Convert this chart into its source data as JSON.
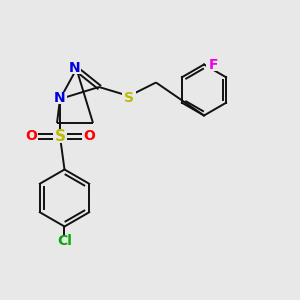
{
  "background_color": "#e8e8e8",
  "figsize": [
    3.0,
    3.0
  ],
  "dpi": 100,
  "bond_lw": 1.4,
  "black": "#111111",
  "colors": {
    "N": "#0000dd",
    "S": "#bbbb00",
    "O": "#ff0000",
    "F": "#ee00ee",
    "Cl": "#00aa00"
  },
  "label_fontsize": 9
}
